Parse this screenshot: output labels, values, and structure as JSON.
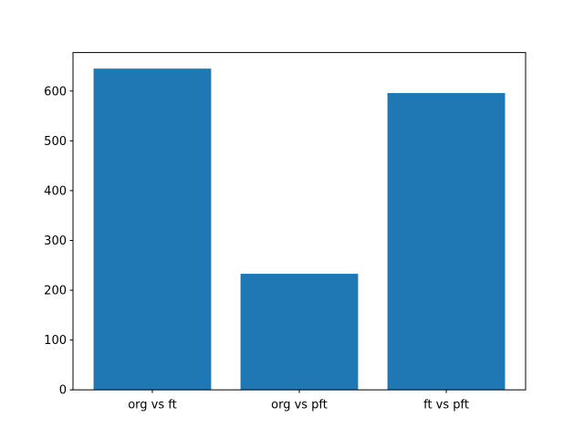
{
  "chart_data": {
    "type": "bar",
    "title": "",
    "xlabel": "",
    "ylabel": "",
    "categories": [
      "org vs ft",
      "org vs pft",
      "ft vs pft"
    ],
    "values": [
      645,
      233,
      596
    ],
    "yticks": [
      0,
      100,
      200,
      300,
      400,
      500,
      600
    ],
    "ylim": [
      0,
      677.25
    ],
    "xlim": [
      -0.54,
      2.54
    ],
    "bar_width": 0.8,
    "bar_color": "#1f77b4",
    "axes_edge_color": "#000000",
    "tick_label_color": "#000000",
    "background": "#ffffff",
    "grid": false,
    "legend": null
  }
}
